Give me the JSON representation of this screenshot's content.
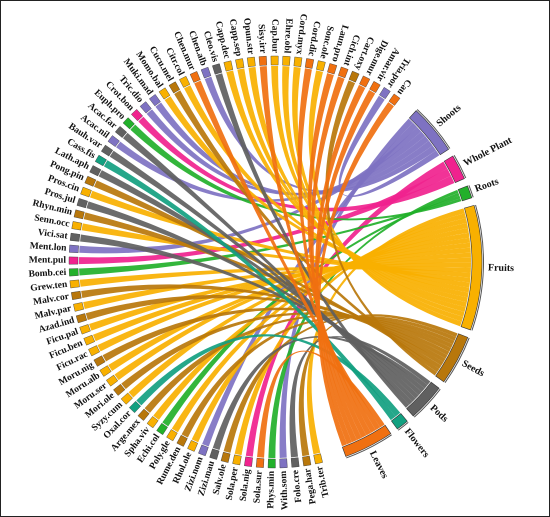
{
  "chart_data": {
    "type": "chord",
    "title": "",
    "colors": {
      "Shoots": "#7E72C2",
      "Whole Plant": "#F0228E",
      "Roots": "#22B02A",
      "Fruits": "#F8B000",
      "Seeds": "#B8770B",
      "Pods": "#606060",
      "Flowers": "#12A080",
      "Leaves": "#F07010",
      "species_palette": [
        "#F8B000",
        "#B8770B",
        "#606060",
        "#7E72C2",
        "#12A080",
        "#22B02A",
        "#F07010",
        "#F0228E"
      ]
    },
    "parts": [
      {
        "name": "Shoots",
        "color": "#7E72C2",
        "value": 8
      },
      {
        "name": "Whole Plant",
        "color": "#F0228E",
        "value": 4
      },
      {
        "name": "Roots",
        "color": "#22B02A",
        "value": 2
      },
      {
        "name": "Fruits",
        "color": "#F8B000",
        "value": 20
      },
      {
        "name": "Seeds",
        "color": "#B8770B",
        "value": 8
      },
      {
        "name": "Pods",
        "color": "#606060",
        "value": 6
      },
      {
        "name": "Flowers",
        "color": "#12A080",
        "value": 2
      },
      {
        "name": "Leaves",
        "color": "#F07010",
        "value": 8
      }
    ],
    "species": [
      {
        "name": "Trib.ter",
        "part": "Fruits"
      },
      {
        "name": "Pega.har",
        "part": "Seeds"
      },
      {
        "name": "Folo.cre",
        "part": "Pods"
      },
      {
        "name": "With.som",
        "part": "Shoots"
      },
      {
        "name": "Phys.min",
        "part": "Roots"
      },
      {
        "name": "Sola.sur",
        "part": "Leaves"
      },
      {
        "name": "Sola.nig",
        "part": "Whole Plant"
      },
      {
        "name": "Sola.per",
        "part": "Fruits"
      },
      {
        "name": "Salv.ole",
        "part": "Seeds"
      },
      {
        "name": "Zizi.mau",
        "part": "Pods"
      },
      {
        "name": "Zizi.nom",
        "part": "Shoots"
      },
      {
        "name": "Rhol.ole",
        "part": "Fruits"
      },
      {
        "name": "Rume.den",
        "part": "Seeds"
      },
      {
        "name": "Poly.gle",
        "part": "Fruits"
      },
      {
        "name": "Echi.col",
        "part": "Roots"
      },
      {
        "name": "Spha.viv",
        "part": "Fruits"
      },
      {
        "name": "Arge.mex",
        "part": "Seeds"
      },
      {
        "name": "Oxal.cor",
        "part": "Flowers"
      },
      {
        "name": "Syzy.cum",
        "part": "Fruits"
      },
      {
        "name": "Mori.ole",
        "part": "Seeds"
      },
      {
        "name": "Moru.ser",
        "part": "Fruits"
      },
      {
        "name": "Moru.alb",
        "part": "Fruits"
      },
      {
        "name": "Moru.nig",
        "part": "Seeds"
      },
      {
        "name": "Ficu.rac",
        "part": "Fruits"
      },
      {
        "name": "Ficu.ben",
        "part": "Fruits"
      },
      {
        "name": "Ficu.pal",
        "part": "Fruits"
      },
      {
        "name": "Azad.ind",
        "part": "Seeds"
      },
      {
        "name": "Malv.par",
        "part": "Fruits"
      },
      {
        "name": "Malv.cor",
        "part": "Seeds"
      },
      {
        "name": "Grew.ten",
        "part": "Fruits"
      },
      {
        "name": "Bomb.cei",
        "part": "Roots"
      },
      {
        "name": "Ment.pul",
        "part": "Whole Plant"
      },
      {
        "name": "Ment.lon",
        "part": "Shoots"
      },
      {
        "name": "Vici.sat",
        "part": "Pods"
      },
      {
        "name": "Senn.occ",
        "part": "Fruits"
      },
      {
        "name": "Rhyn.min",
        "part": "Seeds"
      },
      {
        "name": "Pros.jul",
        "part": "Pods"
      },
      {
        "name": "Pros.cin",
        "part": "Fruits"
      },
      {
        "name": "Pong.pin",
        "part": "Seeds"
      },
      {
        "name": "Lath.aph",
        "part": "Pods"
      },
      {
        "name": "Cass.fis",
        "part": "Flowers"
      },
      {
        "name": "Bauh.var",
        "part": "Pods"
      },
      {
        "name": "Acac.nil",
        "part": "Shoots"
      },
      {
        "name": "Acac.far",
        "part": "Pods"
      },
      {
        "name": "Euph.pro",
        "part": "Roots"
      },
      {
        "name": "Crot.bon",
        "part": "Whole Plant"
      },
      {
        "name": "Tric.dio",
        "part": "Shoots"
      },
      {
        "name": "Muki.mad",
        "part": "Shoots"
      },
      {
        "name": "Momo.bal",
        "part": "Fruits"
      },
      {
        "name": "Cucu.mel",
        "part": "Seeds"
      },
      {
        "name": "Citr.col",
        "part": "Fruits"
      },
      {
        "name": "Chen.mur",
        "part": "Leaves"
      },
      {
        "name": "Chen.alb",
        "part": "Shoots"
      },
      {
        "name": "Cleo.vis",
        "part": "Pods"
      },
      {
        "name": "Capp.dec",
        "part": "Fruits"
      },
      {
        "name": "Capp.sep",
        "part": "Fruits"
      },
      {
        "name": "Opun.str",
        "part": "Fruits"
      },
      {
        "name": "Sisy.irr",
        "part": "Leaves"
      },
      {
        "name": "Cap.bur",
        "part": "Fruits"
      },
      {
        "name": "Ehre.obl",
        "part": "Fruits"
      },
      {
        "name": "Cord.myx",
        "part": "Fruits"
      },
      {
        "name": "Cord.dic",
        "part": "Leaves"
      },
      {
        "name": "Sonc.ole",
        "part": "Fruits"
      },
      {
        "name": "Laun.pro",
        "part": "Leaves"
      },
      {
        "name": "Cich.int",
        "part": "Leaves"
      },
      {
        "name": "Cart.oxy",
        "part": "Seeds"
      },
      {
        "name": "Dige.mur",
        "part": "Leaves"
      },
      {
        "name": "Amar.vir",
        "part": "Leaves"
      },
      {
        "name": "Tria.por",
        "part": "Shoots"
      },
      {
        "name": "Cau",
        "part": "Leaves"
      }
    ]
  }
}
